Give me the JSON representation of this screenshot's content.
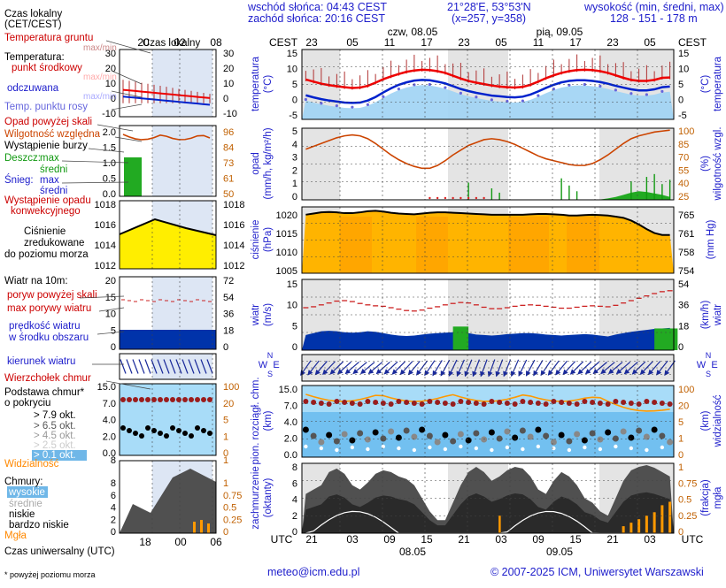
{
  "header": {
    "sunrise": "wschód słońca: 04:43 CEST",
    "sunset": "zachód słońca: 20:16 CEST",
    "coords": "21°28'E, 53°53'N",
    "grid": "(x=257, y=358)",
    "elevation_title": "wysokość (min, średni, max)",
    "elevation_values": "128 - 151 - 178 m",
    "day1": "czw, 08.05",
    "day2": "pią, 09.05",
    "tz": "CEST"
  },
  "legend": {
    "time_title": "Czas lokalny",
    "time_sub": "(CET/CEST)",
    "local_ticks": [
      "20",
      "02",
      "08"
    ],
    "utc_ticks": [
      "18",
      "00",
      "06"
    ],
    "soil_temp": "Temperatura gruntu",
    "soil_max_min": "max/min",
    "temp_title": "Temperatura:",
    "temp_center": "punkt środkowy",
    "temp_center_mm": "max/min",
    "temp_felt": "odczuwana",
    "temp_felt_mm": "max/min",
    "dew": "Temp. punktu rosy",
    "precip_above": "Opad powyżej skali",
    "humidity": "Wilgotność względna",
    "storm": "Wystąpienie burzy",
    "rain": "Deszcz:",
    "rain_max": "max",
    "rain_mean": "średni",
    "snow": "Śnieg:",
    "snow_max": "max",
    "snow_mean": "średni",
    "conv1": "Wystąpienie opadu",
    "conv2": "konwekcyjnego",
    "pressure1": "Ciśnienie",
    "pressure2": "zredukowane",
    "pressure3": "do poziomu morza",
    "wind_title": "Wiatr na 10m:",
    "gust_above": "poryw powyżej skali",
    "gust_max": "max porywy wiatru",
    "wind_mean1": "prędkość wiatru",
    "wind_mean2": "w środku obszaru",
    "wind_dir": "kierunek wiatru",
    "wind_vane": "Wierzchołek chmur",
    "cloudbase1": "Podstawa chmur*",
    "cloudbase2": "o pokryciu",
    "cb_79": "> 7.9 okt.",
    "cb_65": "> 6.5 okt.",
    "cb_45": "> 4.5 okt.",
    "cb_25": "> 2.5 okt.",
    "cb_01": "> 0.1 okt.",
    "visibility": "Widzialność",
    "clouds": "Chmury:",
    "cl_high": "wysokie",
    "cl_mid": "średnie",
    "cl_low": "niskie",
    "cl_vlow": "bardzo niskie",
    "fog": "Mgła",
    "utc_time": "Czas uniwersalny (UTC)",
    "footnote": "* powyżej poziomu morza"
  },
  "mini_axes": {
    "temp_left": [
      "30",
      "20",
      "10",
      "0",
      "-10"
    ],
    "temp_right": [
      "30",
      "20",
      "10",
      "0",
      "-10"
    ],
    "precip_left": [
      "2.0",
      "1.5",
      "1.0",
      "0.5",
      "0.0"
    ],
    "hum_right": [
      "96",
      "84",
      "73",
      "61",
      "50"
    ],
    "press_left": [
      "1018",
      "1016",
      "1014",
      "1012"
    ],
    "press_right": [
      "1018",
      "1016",
      "1014",
      "1012"
    ],
    "wind_left": [
      "20",
      "15",
      "10",
      "5",
      "0"
    ],
    "wind_right": [
      "72",
      "54",
      "36",
      "18",
      "0"
    ],
    "cloud_left": [
      "15.0",
      "7.0",
      "4.0",
      "2.0",
      "0.0"
    ],
    "cloud_right": [
      "100",
      "20",
      "5",
      "1",
      "0"
    ],
    "vis_mark": "8",
    "vis_mark_r": "1",
    "octa_left": [
      "8",
      "6",
      "4",
      "2",
      "0"
    ],
    "fog_right": [
      "1",
      "0.75",
      "0.5",
      "0.25",
      "0"
    ]
  },
  "axes": {
    "hour_ticks_top": [
      "23",
      "05",
      "11",
      "17",
      "23",
      "05",
      "11",
      "17",
      "23",
      "05"
    ],
    "hour_ticks_bottom": [
      "21",
      "03",
      "09",
      "15",
      "21",
      "03",
      "09",
      "15",
      "21",
      "03"
    ],
    "date_bottom_1": "08.05",
    "date_bottom_2": "09.05",
    "utc": "UTC",
    "temp_left": [
      "15",
      "10",
      "5",
      "0",
      "-5"
    ],
    "temp_right": [
      "15",
      "10",
      "5",
      "0",
      "-5"
    ],
    "temp_label_l": "temperatura",
    "temp_unit_l": "(°C)",
    "temp_label_r": "temperatura",
    "temp_unit_r": "(°C)",
    "precip_left": [
      "5",
      "4",
      "3",
      "2",
      "1",
      "0"
    ],
    "hum_right": [
      "100",
      "85",
      "70",
      "55",
      "40",
      "25"
    ],
    "precip_label": "opad",
    "precip_unit": "(mm/h, kg/m²/h)",
    "hum_label": "wilgotność wzgl.",
    "hum_unit": "(%)",
    "press_left": [
      "1020",
      "1015",
      "1010",
      "1005"
    ],
    "press_right": [
      "765",
      "761",
      "758",
      "754"
    ],
    "press_label": "ciśnienie",
    "press_unit": "(hPa)",
    "press_unit_r": "(mm Hg)",
    "wind_left": [
      "15",
      "10",
      "5",
      "0"
    ],
    "wind_right": [
      "54",
      "36",
      "18",
      "0"
    ],
    "wind_label": "wiatr",
    "wind_unit_l": "(m/s)",
    "wind_unit_r": "(km/h)",
    "compass": "NWSE",
    "cloud_left": [
      "15.0",
      "7.0",
      "4.0",
      "2.0",
      "0.0"
    ],
    "cloud_right": [
      "100",
      "20",
      "5",
      "1",
      "0"
    ],
    "cloud_label": "pion. rozciągł. chm.",
    "cloud_unit": "(km)",
    "vis_label": "widzialność",
    "vis_unit": "(km)",
    "octa_left": [
      "8",
      "6",
      "4",
      "2",
      "0"
    ],
    "fog_right": [
      "1",
      "0.75",
      "0.5",
      "0.25",
      "0"
    ],
    "octa_label": "zachmurzenie",
    "octa_unit": "(oktanty)",
    "fog_label": "mgła",
    "fog_unit": "(frakcja)"
  },
  "footer": {
    "email": "meteo@icm.edu.pl",
    "copyright": "© 2007-2025 ICM, Uniwersytet Warszawski"
  },
  "colors": {
    "temp_red": "#ee0000",
    "felt_blue": "#0022cc",
    "dew_purple": "#6666dd",
    "humidity": "#cc4400",
    "pressure_fill": "#ffc000",
    "wind_fill": "#0033aa",
    "gust": "#cc2222",
    "cloud_dark": "#333333",
    "fog_bar": "#ff9900",
    "title_blue": "#2020cc"
  },
  "chart_data": [
    {
      "type": "line",
      "title": "temperatura",
      "x_start": "2025-05-08 22:00 CEST",
      "x_step_hours": 1,
      "ylabel": "temperatura (°C)",
      "ylim": [
        -5,
        15
      ],
      "series": [
        {
          "name": "punkt środkowy",
          "values": [
            6.4,
            5.8,
            5.2,
            4.8,
            4.5,
            4.2,
            4.0,
            4.1,
            4.6,
            5.5,
            6.5,
            7.3,
            8.0,
            8.6,
            9.0,
            9.2,
            9.1,
            8.8,
            8.3,
            7.5,
            6.7,
            6.0,
            5.5,
            5.1,
            4.7,
            4.4,
            4.2,
            4.1,
            4.3,
            4.9,
            5.8,
            6.8,
            7.6,
            8.3,
            8.8,
            9.1,
            9.2,
            9.1,
            8.8,
            8.3,
            7.6,
            6.9,
            6.3,
            6.0,
            6.0,
            6.3,
            6.9,
            7.0
          ]
        },
        {
          "name": "odczuwana",
          "values": [
            1.9,
            1.3,
            0.8,
            0.4,
            0.1,
            -0.2,
            -0.3,
            -0.2,
            0.4,
            1.4,
            2.7,
            3.9,
            4.9,
            5.6,
            6.1,
            6.3,
            6.2,
            5.8,
            5.3,
            4.5,
            3.7,
            3.1,
            2.6,
            2.2,
            1.8,
            1.6,
            1.4,
            1.3,
            1.5,
            2.1,
            3.0,
            4.0,
            4.9,
            5.6,
            6.0,
            6.2,
            6.2,
            6.0,
            5.7,
            5.2,
            4.6,
            4.1,
            3.6,
            3.3,
            3.3,
            3.6,
            4.2,
            4.4
          ]
        }
      ]
    },
    {
      "type": "line",
      "title": "opad",
      "ylabel": "opad (mm/h, kg/m²/h)",
      "ylim": [
        0,
        5
      ],
      "y2label": "wilgotność wzgl. (%)",
      "y2lim": [
        25,
        100
      ],
      "series": [
        {
          "name": "wilgotność względna",
          "values": [
            78,
            81,
            84,
            87,
            90,
            92,
            93,
            92,
            89,
            84,
            78,
            72,
            67,
            63,
            60,
            58,
            58,
            61,
            66,
            72,
            77,
            82,
            85,
            88,
            89,
            88,
            86,
            83,
            79,
            75,
            71,
            68,
            66,
            64,
            62,
            61,
            61,
            63,
            67,
            72,
            78,
            84,
            89,
            92,
            94,
            96,
            97,
            98
          ]
        }
      ]
    },
    {
      "type": "area",
      "title": "ciśnienie",
      "ylabel": "ciśnienie (hPa)",
      "ylim": [
        1005,
        1022
      ],
      "y2label": "(mm Hg)",
      "series": [
        {
          "name": "ciśnienie",
          "values": [
            1020.0,
            1020.3,
            1020.6,
            1020.7,
            1020.6,
            1020.4,
            1020.4,
            1020.6,
            1020.9,
            1021.0,
            1020.8,
            1020.5,
            1020.3,
            1020.2,
            1020.1,
            1020.3,
            1020.5,
            1020.6,
            1020.6,
            1020.5,
            1020.4,
            1020.3,
            1020.2,
            1020.1,
            1020.0,
            1020.0,
            1020.0,
            1020.0,
            1020.0,
            1020.1,
            1020.2,
            1020.2,
            1020.1,
            1020.0,
            1019.8,
            1019.8,
            1019.9,
            1020.0,
            1019.9,
            1019.8,
            1019.5,
            1019.2,
            1018.5,
            1017.5,
            1016.3,
            1015.3,
            1014.8,
            1014.8
          ]
        }
      ]
    },
    {
      "type": "area",
      "title": "wiatr",
      "ylabel": "wiatr (m/s)",
      "ylim": [
        0,
        15
      ],
      "y2label": "(km/h)",
      "series": [
        {
          "name": "prędkość wiatru",
          "values": [
            3.2,
            3.6,
            4.0,
            4.1,
            4.0,
            3.8,
            3.7,
            3.8,
            4.0,
            3.9,
            3.6,
            3.3,
            3.1,
            3.0,
            3.1,
            3.3,
            3.5,
            3.6,
            3.7,
            3.8,
            5.0,
            3.6,
            3.3,
            3.2,
            3.1,
            3.2,
            3.4,
            3.5,
            3.6,
            3.6,
            3.5,
            3.3,
            3.2,
            3.1,
            3.2,
            3.3,
            3.4,
            3.3,
            3.1,
            2.9,
            3.3,
            3.6,
            3.9,
            4.1,
            4.3,
            4.5,
            4.6,
            4.7
          ]
        },
        {
          "name": "max porywy wiatru",
          "values": [
            9.0,
            9.2,
            9.6,
            10.0,
            10.4,
            10.5,
            10.3,
            9.9,
            9.6,
            9.4,
            9.3,
            9.0,
            8.7,
            8.4,
            8.3,
            8.5,
            8.9,
            9.2,
            9.6,
            9.9,
            10.1,
            10.0,
            9.6,
            9.1,
            8.8,
            8.8,
            9.0,
            9.3,
            9.5,
            9.6,
            9.5,
            9.3,
            9.1,
            8.9,
            8.9,
            9.1,
            9.3,
            9.4,
            9.3,
            9.2,
            9.5,
            10.0,
            10.5,
            11.0,
            11.5,
            12.0,
            12.4,
            12.6
          ]
        }
      ]
    },
    {
      "type": "area",
      "title": "zachmurzenie",
      "ylabel": "zachmurzenie (oktanty)",
      "ylim": [
        0,
        8
      ],
      "y2label": "mgła (frakcja)",
      "y2lim": [
        0,
        1
      ],
      "series": [
        {
          "name": "niskie",
          "values": [
            4.5,
            5.0,
            5.5,
            7.0,
            7.4,
            6.8,
            5.5,
            5.0,
            5.8,
            6.8,
            7.2,
            7.0,
            6.5,
            6.2,
            5.5,
            4.0,
            2.5,
            1.5,
            1.5,
            3.5,
            5.5,
            7.0,
            7.6,
            7.0,
            6.0,
            6.5,
            7.2,
            7.6,
            7.4,
            6.5,
            5.0,
            4.5,
            6.0,
            7.0,
            6.5,
            5.5,
            4.0,
            3.5,
            2.5,
            2.0,
            4.0,
            6.0,
            7.2,
            7.6,
            7.8,
            7.5,
            7.0,
            6.5
          ]
        },
        {
          "name": "mgła",
          "values": [
            0,
            0,
            0,
            0,
            0,
            0,
            0,
            0,
            0,
            0,
            0,
            0,
            0,
            0,
            0,
            0,
            0,
            0,
            0,
            0,
            0,
            0,
            0,
            0,
            0,
            0,
            0,
            0,
            0,
            0,
            0,
            0,
            0,
            0,
            0,
            0,
            0,
            0,
            0,
            0,
            0,
            0.1,
            0.15,
            0.2,
            0.25,
            0.3,
            0.4,
            0.45
          ]
        }
      ]
    }
  ]
}
